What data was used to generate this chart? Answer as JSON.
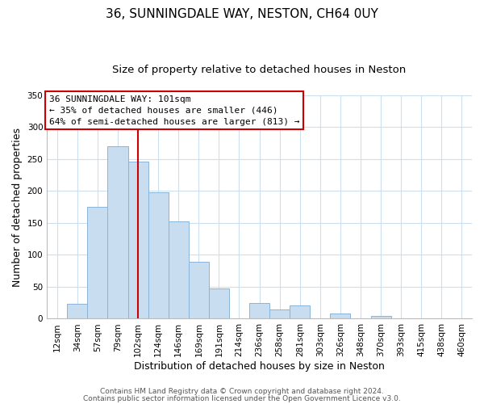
{
  "title": "36, SUNNINGDALE WAY, NESTON, CH64 0UY",
  "subtitle": "Size of property relative to detached houses in Neston",
  "xlabel": "Distribution of detached houses by size in Neston",
  "ylabel": "Number of detached properties",
  "bin_labels": [
    "12sqm",
    "34sqm",
    "57sqm",
    "79sqm",
    "102sqm",
    "124sqm",
    "146sqm",
    "169sqm",
    "191sqm",
    "214sqm",
    "236sqm",
    "258sqm",
    "281sqm",
    "303sqm",
    "326sqm",
    "348sqm",
    "370sqm",
    "393sqm",
    "415sqm",
    "438sqm",
    "460sqm"
  ],
  "bar_values": [
    0,
    23,
    175,
    270,
    246,
    198,
    153,
    89,
    48,
    0,
    25,
    14,
    21,
    0,
    8,
    0,
    5,
    0,
    0,
    0,
    0
  ],
  "bar_color": "#c8ddf0",
  "bar_edge_color": "#8ab4d8",
  "reference_line_x": 4,
  "reference_line_color": "#cc0000",
  "ylim": [
    0,
    350
  ],
  "yticks": [
    0,
    50,
    100,
    150,
    200,
    250,
    300,
    350
  ],
  "annotation_title": "36 SUNNINGDALE WAY: 101sqm",
  "annotation_line1": "← 35% of detached houses are smaller (446)",
  "annotation_line2": "64% of semi-detached houses are larger (813) →",
  "footer_line1": "Contains HM Land Registry data © Crown copyright and database right 2024.",
  "footer_line2": "Contains public sector information licensed under the Open Government Licence v3.0.",
  "background_color": "#ffffff",
  "grid_color": "#ccdff0",
  "title_fontsize": 11,
  "subtitle_fontsize": 9.5,
  "axis_label_fontsize": 9,
  "tick_fontsize": 7.5,
  "footer_fontsize": 6.5,
  "annotation_fontsize": 8
}
